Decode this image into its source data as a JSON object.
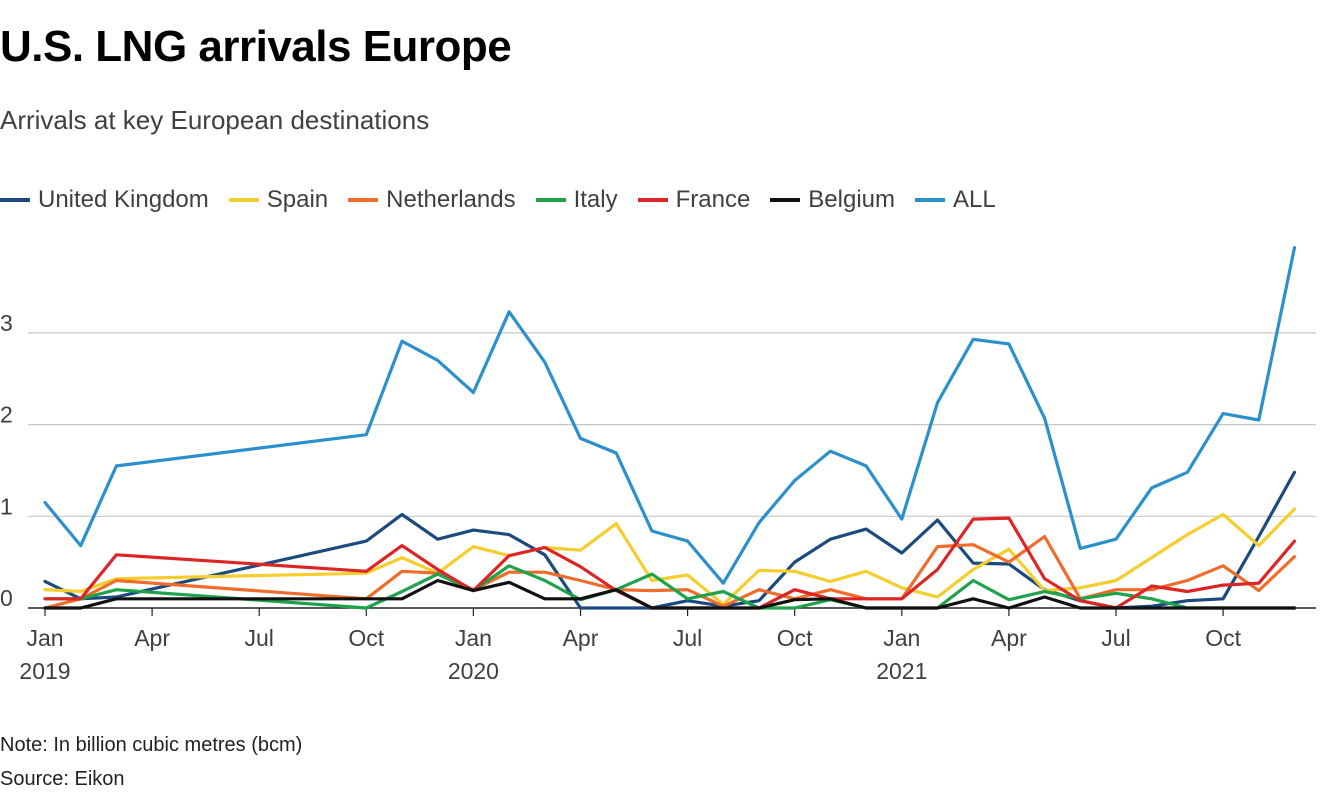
{
  "header": {
    "title": "U.S. LNG arrivals Europe",
    "subtitle": "Arrivals at key European destinations"
  },
  "footer": {
    "note": "Note: In billion cubic metres (bcm)",
    "source": "Source: Eikon"
  },
  "chart_data": {
    "type": "line",
    "title": "U.S. LNG arrivals Europe",
    "subtitle": "Arrivals at key European destinations",
    "xlabel": "",
    "ylabel": "",
    "ylim": [
      0,
      4
    ],
    "yticks": [
      0,
      1,
      2,
      3
    ],
    "x_unit": "month index from Jan 2019 (0 = Jan 2019)",
    "x_ticks": [
      {
        "x": 0,
        "label": "Jan",
        "year": "2019"
      },
      {
        "x": 3,
        "label": "Apr",
        "year": ""
      },
      {
        "x": 6,
        "label": "Jul",
        "year": ""
      },
      {
        "x": 9,
        "label": "Oct",
        "year": ""
      },
      {
        "x": 12,
        "label": "Jan",
        "year": "2020"
      },
      {
        "x": 15,
        "label": "Apr",
        "year": ""
      },
      {
        "x": 18,
        "label": "Jul",
        "year": ""
      },
      {
        "x": 21,
        "label": "Oct",
        "year": ""
      },
      {
        "x": 24,
        "label": "Jan",
        "year": "2021"
      },
      {
        "x": 27,
        "label": "Apr",
        "year": ""
      },
      {
        "x": 30,
        "label": "Jul",
        "year": ""
      },
      {
        "x": 33,
        "label": "Oct",
        "year": ""
      }
    ],
    "legend_position": "top-left",
    "series": [
      {
        "name": "United Kingdom",
        "color": "#1b4a7f",
        "x": [
          0,
          1,
          2,
          9,
          10,
          11,
          12,
          13,
          14,
          15,
          16,
          17,
          18,
          19,
          20,
          21,
          22,
          23,
          24,
          25,
          26,
          27,
          28,
          29,
          30,
          31,
          32,
          33,
          34,
          35
        ],
        "values": [
          0.29,
          0.1,
          0.12,
          0.73,
          1.02,
          0.75,
          0.85,
          0.8,
          0.58,
          0.0,
          0.0,
          0.0,
          0.08,
          0.02,
          0.08,
          0.5,
          0.75,
          0.86,
          0.6,
          0.96,
          0.49,
          0.48,
          0.2,
          0.08,
          0.0,
          0.02,
          0.08,
          0.1,
          0.78,
          1.48
        ]
      },
      {
        "name": "Spain",
        "color": "#f5cd2e",
        "x": [
          0,
          1,
          2,
          9,
          10,
          11,
          12,
          13,
          14,
          15,
          16,
          17,
          18,
          19,
          20,
          21,
          22,
          23,
          24,
          25,
          26,
          27,
          28,
          29,
          30,
          31,
          32,
          33,
          34,
          35
        ],
        "values": [
          0.2,
          0.18,
          0.32,
          0.38,
          0.55,
          0.38,
          0.67,
          0.57,
          0.66,
          0.63,
          0.92,
          0.3,
          0.36,
          0.04,
          0.41,
          0.4,
          0.29,
          0.4,
          0.22,
          0.12,
          0.42,
          0.64,
          0.19,
          0.22,
          0.3,
          0.55,
          0.8,
          1.02,
          0.68,
          1.08
        ]
      },
      {
        "name": "Netherlands",
        "color": "#ef6c2b",
        "x": [
          0,
          1,
          2,
          9,
          10,
          11,
          12,
          13,
          14,
          15,
          16,
          17,
          18,
          19,
          20,
          21,
          22,
          23,
          24,
          25,
          26,
          27,
          28,
          29,
          30,
          31,
          32,
          33,
          34,
          35
        ],
        "values": [
          0.0,
          0.1,
          0.3,
          0.1,
          0.4,
          0.38,
          0.2,
          0.39,
          0.39,
          0.3,
          0.2,
          0.19,
          0.2,
          0.02,
          0.2,
          0.1,
          0.2,
          0.1,
          0.1,
          0.67,
          0.69,
          0.5,
          0.78,
          0.1,
          0.2,
          0.2,
          0.3,
          0.46,
          0.19,
          0.56
        ]
      },
      {
        "name": "Italy",
        "color": "#1fa24a",
        "x": [
          0,
          1,
          2,
          9,
          10,
          11,
          12,
          13,
          14,
          15,
          16,
          17,
          18,
          19,
          20,
          21,
          22,
          23,
          24,
          25,
          26,
          27,
          28,
          29,
          30,
          31,
          32,
          33,
          34,
          35
        ],
        "values": [
          0.1,
          0.1,
          0.2,
          0.0,
          0.18,
          0.37,
          0.19,
          0.46,
          0.3,
          0.09,
          0.2,
          0.37,
          0.1,
          0.18,
          0.0,
          0.0,
          0.09,
          0.0,
          0.0,
          0.0,
          0.3,
          0.09,
          0.18,
          0.1,
          0.16,
          0.1,
          0.0,
          0.0,
          0.0,
          0.0
        ]
      },
      {
        "name": "France",
        "color": "#dc2626",
        "x": [
          0,
          1,
          2,
          9,
          10,
          11,
          12,
          13,
          14,
          15,
          16,
          17,
          18,
          19,
          20,
          21,
          22,
          23,
          24,
          25,
          26,
          27,
          28,
          29,
          30,
          31,
          32,
          33,
          34,
          35
        ],
        "values": [
          0.1,
          0.1,
          0.58,
          0.4,
          0.68,
          0.42,
          0.19,
          0.57,
          0.66,
          0.45,
          0.19,
          0.0,
          0.0,
          0.0,
          0.0,
          0.2,
          0.1,
          0.1,
          0.1,
          0.42,
          0.97,
          0.98,
          0.32,
          0.08,
          0.0,
          0.24,
          0.18,
          0.25,
          0.27,
          0.73
        ]
      },
      {
        "name": "Belgium",
        "color": "#111111",
        "x": [
          0,
          1,
          2,
          9,
          10,
          11,
          12,
          13,
          14,
          15,
          16,
          17,
          18,
          19,
          20,
          21,
          22,
          23,
          24,
          25,
          26,
          27,
          28,
          29,
          30,
          31,
          32,
          33,
          34,
          35
        ],
        "values": [
          0.0,
          0.0,
          0.1,
          0.1,
          0.1,
          0.3,
          0.19,
          0.28,
          0.1,
          0.1,
          0.2,
          0.0,
          0.0,
          0.0,
          0.0,
          0.09,
          0.1,
          0.0,
          0.0,
          0.0,
          0.1,
          0.0,
          0.12,
          0.0,
          0.0,
          0.0,
          0.0,
          0.0,
          0.0,
          0.0
        ]
      },
      {
        "name": "ALL",
        "color": "#2b90cc",
        "x": [
          0,
          1,
          2,
          9,
          10,
          11,
          12,
          13,
          14,
          15,
          16,
          17,
          18,
          19,
          20,
          21,
          22,
          23,
          24,
          25,
          26,
          27,
          28,
          29,
          30,
          31,
          32,
          33,
          34,
          35
        ],
        "values": [
          1.15,
          0.68,
          1.55,
          1.89,
          2.91,
          2.7,
          2.35,
          3.23,
          2.68,
          1.85,
          1.69,
          0.84,
          0.73,
          0.27,
          0.93,
          1.39,
          1.71,
          1.55,
          0.97,
          2.24,
          2.93,
          2.88,
          2.07,
          0.65,
          0.75,
          1.31,
          1.48,
          2.12,
          2.05,
          3.93
        ]
      }
    ]
  }
}
